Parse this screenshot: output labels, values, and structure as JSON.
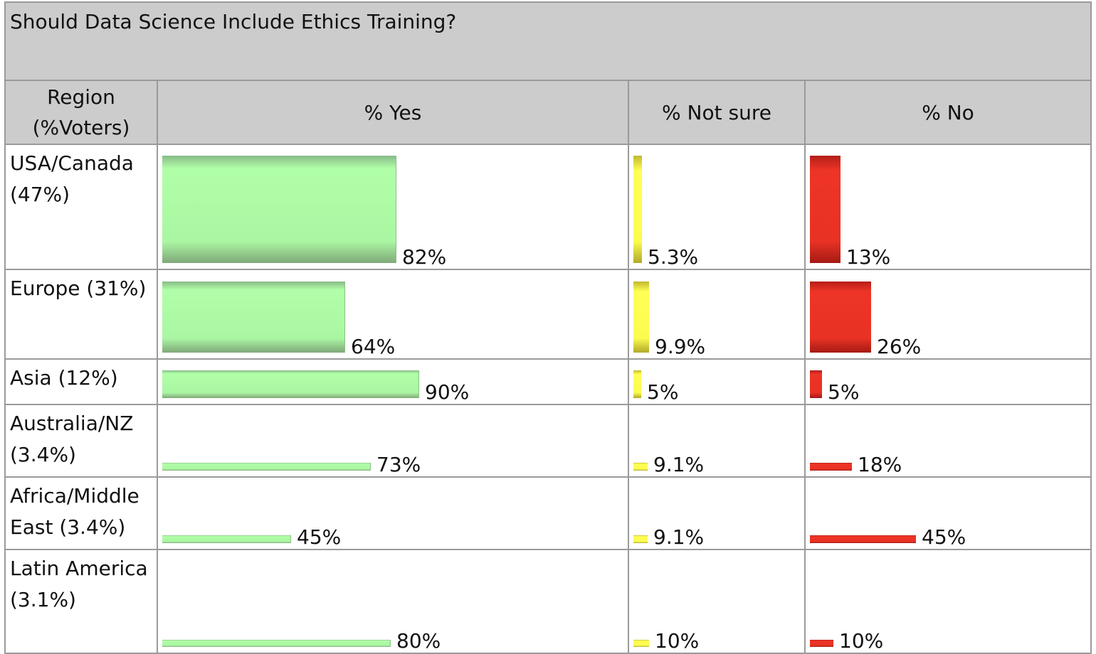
{
  "colors": {
    "yes": "#aaf6a2",
    "not_sure": "#ffff55",
    "no": "#ee3426",
    "header_bg": "#cccccc"
  },
  "chart_data": {
    "type": "table",
    "title": "Should Data Science Include Ethics Training?",
    "columns": [
      "Region (%Voters)",
      "% Yes",
      "% Not sure",
      "% No"
    ],
    "rows": [
      {
        "region": "USA/Canada (47%)",
        "voters_pct": 47,
        "yes": 82,
        "not_sure": 5.3,
        "no": 13,
        "yes_label": "82%",
        "not_sure_label": "5.3%",
        "no_label": "13%"
      },
      {
        "region": "Europe (31%)",
        "voters_pct": 31,
        "yes": 64,
        "not_sure": 9.9,
        "no": 26,
        "yes_label": "64%",
        "not_sure_label": "9.9%",
        "no_label": "26%"
      },
      {
        "region": "Asia (12%)",
        "voters_pct": 12,
        "yes": 90,
        "not_sure": 5,
        "no": 5,
        "yes_label": "90%",
        "not_sure_label": "5%",
        "no_label": "5%"
      },
      {
        "region": "Australia/NZ (3.4%)",
        "voters_pct": 3.4,
        "yes": 73,
        "not_sure": 9.1,
        "no": 18,
        "yes_label": "73%",
        "not_sure_label": "9.1%",
        "no_label": "18%"
      },
      {
        "region": "Africa/Middle East (3.4%)",
        "voters_pct": 3.4,
        "yes": 45,
        "not_sure": 9.1,
        "no": 45,
        "yes_label": "45%",
        "not_sure_label": "9.1%",
        "no_label": "45%"
      },
      {
        "region": "Latin America (3.1%)",
        "voters_pct": 3.1,
        "yes": 80,
        "not_sure": 10,
        "no": 10,
        "yes_label": "80%",
        "not_sure_label": "10%",
        "no_label": "10%"
      }
    ]
  }
}
